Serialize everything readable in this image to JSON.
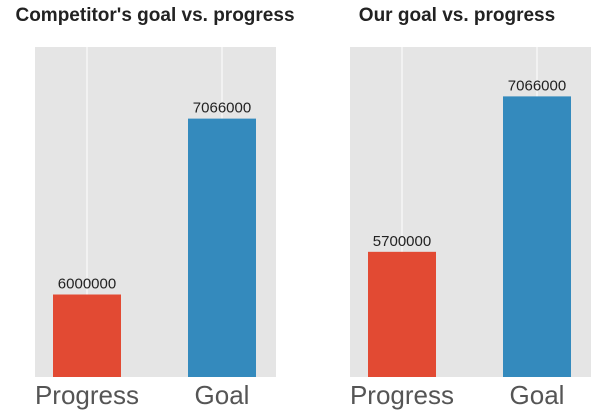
{
  "chart_data": [
    {
      "type": "bar",
      "title": "Competitor's goal vs. progress",
      "categories": [
        "Progress",
        "Goal"
      ],
      "values": [
        6000000,
        7066000
      ],
      "colors": [
        "#e24a33",
        "#348abd"
      ],
      "ylim": [
        5500000,
        7500000
      ],
      "grid": "vertical",
      "xlabel": "",
      "ylabel": ""
    },
    {
      "type": "bar",
      "title": "Our goal vs. progress",
      "categories": [
        "Progress",
        "Goal"
      ],
      "values": [
        5700000,
        7066000
      ],
      "colors": [
        "#e24a33",
        "#348abd"
      ],
      "ylim": [
        4600000,
        7500000
      ],
      "grid": "vertical",
      "xlabel": "",
      "ylabel": ""
    }
  ]
}
